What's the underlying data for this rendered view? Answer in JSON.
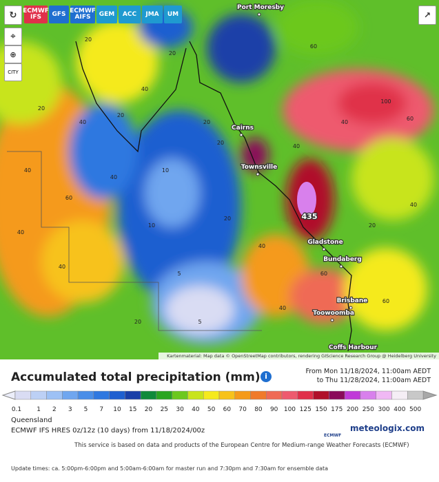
{
  "toolbar": {
    "models": [
      "ECMWF IFS",
      "GFS",
      "ECMWF AIFS",
      "GEM",
      "ACC",
      "JMA",
      "UM"
    ],
    "city_button": "CITY"
  },
  "map": {
    "places": [
      "Port Moresby",
      "Cairns",
      "Townsville",
      "Gladstone",
      "Bundaberg",
      "Brisbane",
      "Toowoomba",
      "Coffs Harbour"
    ],
    "max_label": "435",
    "value_labels": [
      20,
      40,
      20,
      40,
      60,
      40,
      20,
      20,
      40,
      40,
      60,
      20,
      5,
      10,
      20,
      40,
      60,
      100,
      40,
      20,
      40,
      10,
      5,
      20,
      40,
      60,
      40,
      20,
      40,
      60
    ],
    "attribution": "Kartenmaterial: Map data © OpenStreetMap contributors, rendering GIScience Research Group @ Heidelberg University"
  },
  "panel": {
    "title": "Accumulated total precipitation (mm)",
    "date_from": "From Mon 11/18/2024, 11:00am AEDT",
    "date_to": "to Thu 11/28/2024, 11:00am AEDT",
    "legend": {
      "levels": [
        0.1,
        1,
        2,
        3,
        5,
        7,
        10,
        15,
        20,
        25,
        30,
        40,
        50,
        60,
        70,
        80,
        90,
        100,
        125,
        150,
        175,
        200,
        250,
        300,
        400,
        500
      ],
      "colors": [
        "#d9dcf3",
        "#bcd0f5",
        "#9dc1f5",
        "#6fa6ef",
        "#4a8ee8",
        "#2f78e0",
        "#1f5fd0",
        "#1a3fa8",
        "#0f8a3a",
        "#2aa520",
        "#6cc81e",
        "#c8e41c",
        "#f5ea1e",
        "#f7c21a",
        "#f59a1a",
        "#f07a2a",
        "#ef6a55",
        "#ee5a6e",
        "#e0304a",
        "#b0102a",
        "#8a0a5a",
        "#c03ad8",
        "#d880ec",
        "#f0b8f4",
        "#f5eef5",
        "#c8c8c8"
      ],
      "below_color": "#eceefa",
      "above_color": "#a8a8a8"
    },
    "region": "Queensland",
    "model_run": "ECMWF IFS HRES 0z/12z (10 days) from 11/18/2024/00z",
    "brand_logo": "ECMWF",
    "brand": "meteologix.com",
    "credit": "This service is based on data and products of the European Centre for Medium-range Weather Forecasts (ECMWF)",
    "update_times": "Update times: ca. 5:00pm-6:00pm and 5:00am-6:00am for master run and 7:30pm and 7:30am for ensemble data"
  }
}
